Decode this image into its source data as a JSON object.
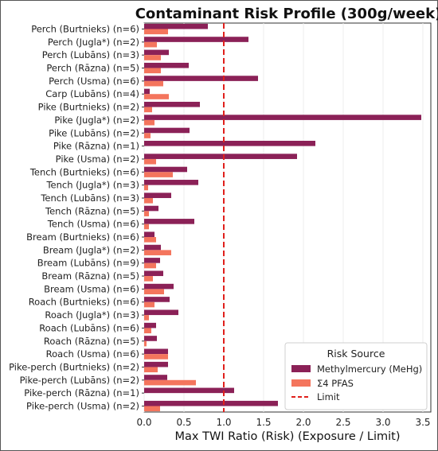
{
  "chart_data": {
    "type": "bar",
    "orientation": "horizontal",
    "title": "Contaminant Risk Profile (300g/week)",
    "xlabel": "Max TWI Ratio (Risk) (Exposure / Limit)",
    "xlim": [
      0,
      3.6
    ],
    "xticks": [
      "0.0",
      "0.5",
      "1.0",
      "1.5",
      "2.0",
      "2.5",
      "3.0",
      "3.5"
    ],
    "grid": true,
    "legend": {
      "title": "Risk Source",
      "placement": "bottom-right"
    },
    "categories": [
      "Perch (Burtnieks) (n=6)",
      "Perch (Jugla*) (n=2)",
      "Perch (Lubāns) (n=3)",
      "Perch (Rāzna) (n=5)",
      "Perch (Usma) (n=6)",
      "Carp (Lubāns) (n=4)",
      "Pike (Burtnieks) (n=2)",
      "Pike (Jugla*) (n=2)",
      "Pike (Lubāns) (n=2)",
      "Pike (Rāzna) (n=1)",
      "Pike (Usma) (n=2)",
      "Tench (Burtnieks) (n=6)",
      "Tench (Jugla*) (n=3)",
      "Tench (Lubāns) (n=3)",
      "Tench (Rāzna) (n=5)",
      "Tench (Usma) (n=6)",
      "Bream (Burtnieks) (n=6)",
      "Bream (Jugla*) (n=2)",
      "Bream (Lubāns) (n=9)",
      "Bream (Rāzna) (n=5)",
      "Bream (Usma) (n=6)",
      "Roach (Burtnieks) (n=6)",
      "Roach (Jugla*) (n=3)",
      "Roach (Lubāns) (n=6)",
      "Roach (Rāzna) (n=5)",
      "Roach (Usma) (n=6)",
      "Pike-perch (Burtnieks) (n=2)",
      "Pike-perch (Lubāns) (n=2)",
      "Pike-perch (Rāzna) (n=1)",
      "Pike-perch (Usma) (n=2)"
    ],
    "series": [
      {
        "name": "Methylmercury (MeHg)",
        "color": "#8b2157",
        "values": [
          0.8,
          1.31,
          0.31,
          0.56,
          1.43,
          0.07,
          0.7,
          3.48,
          0.57,
          2.15,
          1.92,
          0.54,
          0.68,
          0.34,
          0.18,
          0.63,
          0.13,
          0.21,
          0.2,
          0.24,
          0.37,
          0.32,
          0.43,
          0.15,
          0.16,
          0.3,
          0.3,
          0.29,
          1.13,
          1.68
        ]
      },
      {
        "name": "Σ4 PFAS",
        "color": "#f4755d",
        "values": [
          0.3,
          0.16,
          0.21,
          0.21,
          0.24,
          0.31,
          0.1,
          0.13,
          0.08,
          0.0,
          0.15,
          0.36,
          0.05,
          0.11,
          0.06,
          0.06,
          0.15,
          0.34,
          0.15,
          0.11,
          0.25,
          0.13,
          0.06,
          0.09,
          0.03,
          0.3,
          0.17,
          0.65,
          0.0,
          0.2
        ]
      }
    ],
    "reference_line": {
      "name": "Limit",
      "value": 1.0,
      "color": "#e0201c"
    }
  }
}
